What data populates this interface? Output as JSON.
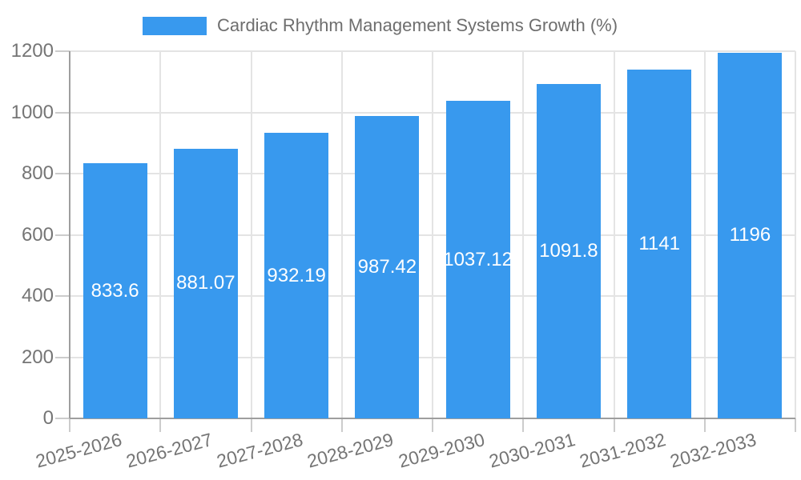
{
  "legend": {
    "label": "Cardiac Rhythm Management Systems Growth (%)"
  },
  "chart_data": {
    "type": "bar",
    "title": "Cardiac Rhythm Management Systems Growth (%)",
    "categories": [
      "2025-2026",
      "2026-2027",
      "2027-2028",
      "2028-2029",
      "2029-2030",
      "2030-2031",
      "2031-2032",
      "2032-2033"
    ],
    "values": [
      833.6,
      881.07,
      932.19,
      987.42,
      1037.12,
      1091.8,
      1141,
      1196
    ],
    "value_labels": [
      "833.6",
      "881.07",
      "932.19",
      "987.42",
      "1037.12",
      "1091.8",
      "1141",
      "1196"
    ],
    "xlabel": "",
    "ylabel": "",
    "ylim": [
      0,
      1200
    ],
    "yticks": [
      0,
      200,
      400,
      600,
      800,
      1000,
      1200
    ],
    "grid": "horizontal-and-vertical",
    "legend_position": "top",
    "x_tick_rotation_deg": 15,
    "colors": {
      "bar": "#3899EE",
      "bar_label": "#ffffff",
      "axis_text": "#757575",
      "legend_text": "#6e6e6e",
      "gridline": "#e4e4e4",
      "axis_line": "#9e9e9e",
      "tick": "#cccccc",
      "background": "#ffffff"
    }
  }
}
